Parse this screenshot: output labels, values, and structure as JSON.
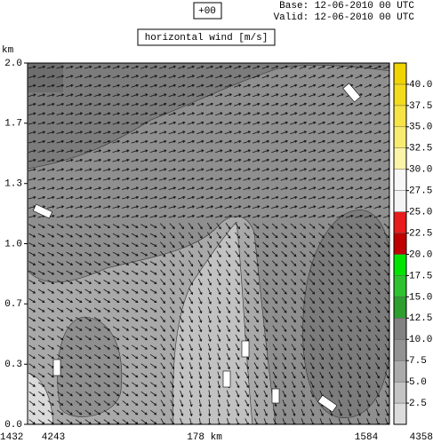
{
  "chart_data": {
    "type": "wind-section",
    "run_label": "+00",
    "base": "Base: 12-06-2010  00 UTC",
    "valid": "Valid: 12-06-2010  00 UTC",
    "title": "horizontal wind [m/s]",
    "y_label": "km",
    "ylim": [
      0,
      2
    ],
    "yticks": [
      {
        "value": 0,
        "label": "0.0"
      },
      {
        "value": 0.333,
        "label": "0.3"
      },
      {
        "value": 0.667,
        "label": "0.7"
      },
      {
        "value": 1,
        "label": "1.0"
      },
      {
        "value": 1.333,
        "label": "1.3"
      },
      {
        "value": 1.667,
        "label": "1.7"
      },
      {
        "value": 2,
        "label": "2.0"
      }
    ],
    "x_labels": [
      "1432",
      "4243",
      "178 km",
      "1584",
      "4358"
    ],
    "colorbar": {
      "lim": [
        0,
        42.5
      ],
      "colors": [
        "#dcdcdc",
        "#c4c4c4",
        "#ababab",
        "#939393",
        "#828282",
        "#2e9e2e",
        "#2fc22f",
        "#00e400",
        "#c00000",
        "#e81c1c",
        "#f4f4f4",
        "#f7f7f7",
        "#fbf3a8",
        "#f8ec70",
        "#f6e444",
        "#f3dc1c",
        "#f0d400"
      ],
      "ticks": [
        2.5,
        {
          "value": 5,
          "label": "5.0"
        },
        7.5,
        {
          "value": 10,
          "label": "10.0"
        },
        12.5,
        {
          "value": 15,
          "label": "15.0"
        },
        17.5,
        {
          "value": 20,
          "label": "20.0"
        },
        22.5,
        {
          "value": 25,
          "label": "25.0"
        },
        27.5,
        {
          "value": 30,
          "label": "30.0"
        },
        32.5,
        {
          "value": 35,
          "label": "35.0"
        },
        37.5,
        {
          "value": 40,
          "label": "40.0"
        }
      ]
    }
  }
}
